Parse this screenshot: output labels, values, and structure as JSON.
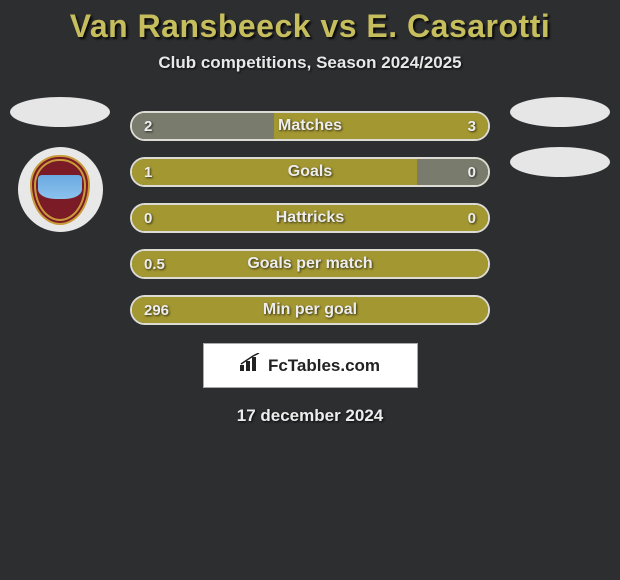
{
  "title": "Van Ransbeeck vs E. Casarotti",
  "subtitle": "Club competitions, Season 2024/2025",
  "date": "17 december 2024",
  "logo_text": "FcTables.com",
  "colors": {
    "background": "#2d2e30",
    "title_color": "#c6bd5d",
    "bar_dominant": "#a39732",
    "bar_half": "#797b6d",
    "badge_bg": "#e6e6e6"
  },
  "stats": [
    {
      "label": "Matches",
      "left_value": "2",
      "right_value": "3",
      "left_width_pct": 40,
      "right_width_pct": 60,
      "left_color": "#797b6d",
      "right_color": "#a39732"
    },
    {
      "label": "Goals",
      "left_value": "1",
      "right_value": "0",
      "left_width_pct": 80,
      "right_width_pct": 20,
      "left_color": "#a39732",
      "right_color": "#797b6d"
    },
    {
      "label": "Hattricks",
      "left_value": "0",
      "right_value": "0",
      "left_width_pct": 100,
      "right_width_pct": 0,
      "left_color": "#a39732",
      "right_color": "#a39732"
    },
    {
      "label": "Goals per match",
      "left_value": "0.5",
      "right_value": "",
      "left_width_pct": 100,
      "right_width_pct": 0,
      "left_color": "#a39732",
      "right_color": "#a39732"
    },
    {
      "label": "Min per goal",
      "left_value": "296",
      "right_value": "",
      "left_width_pct": 100,
      "right_width_pct": 0,
      "left_color": "#a39732",
      "right_color": "#a39732"
    }
  ]
}
